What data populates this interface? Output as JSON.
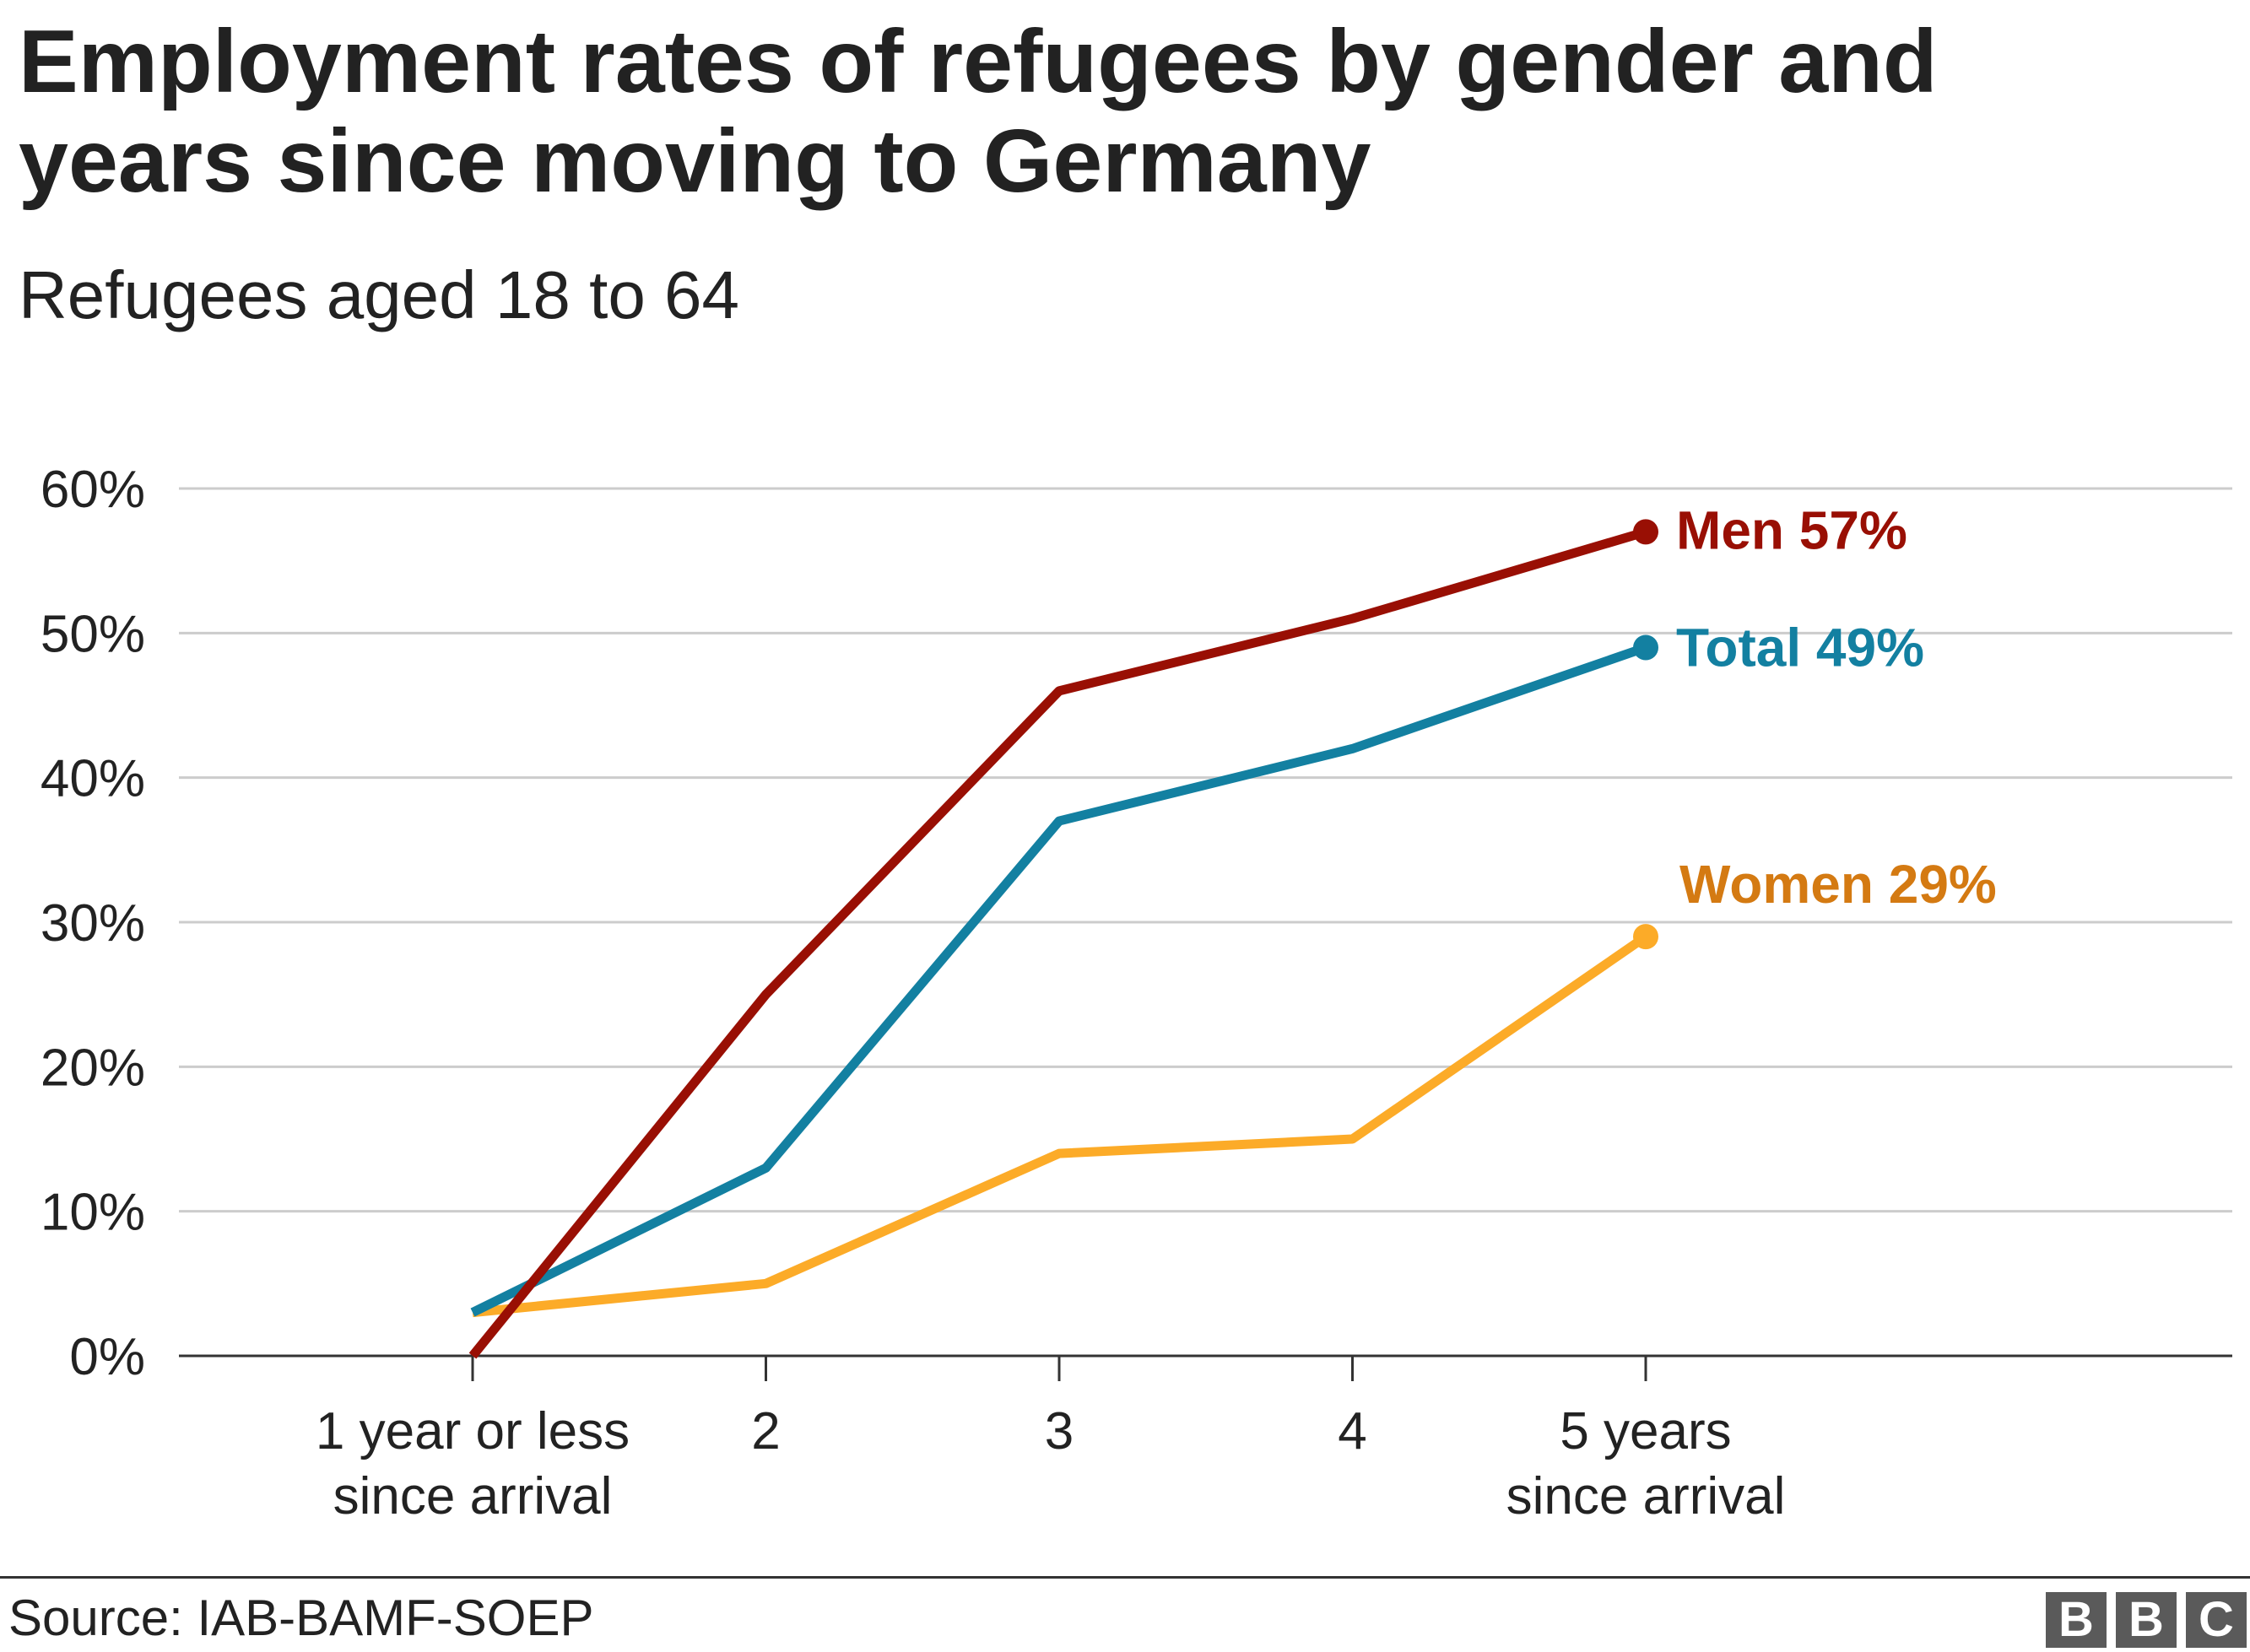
{
  "chart_data": {
    "type": "line",
    "title": "Employment rates of refugees by gender and years since moving to Germany",
    "subtitle": "Refugees aged 18 to 64",
    "categories": [
      [
        "1 year or less",
        "since arrival"
      ],
      [
        "2"
      ],
      [
        "3"
      ],
      [
        "4"
      ],
      [
        "5 years",
        "since arrival"
      ]
    ],
    "ylim": [
      0,
      60
    ],
    "yticks": [
      "0%",
      "10%",
      "20%",
      "30%",
      "40%",
      "50%",
      "60%"
    ],
    "ytick_values": [
      0,
      10,
      20,
      30,
      40,
      50,
      60
    ],
    "grid": true,
    "series": [
      {
        "name": "Men",
        "label": "Men 57%",
        "color": "#990f04",
        "values": [
          0,
          25,
          46,
          51,
          57
        ]
      },
      {
        "name": "Total",
        "label": "Total 49%",
        "color": "#1380a1",
        "values": [
          3,
          13,
          37,
          42,
          49
        ]
      },
      {
        "name": "Women",
        "label": "Women 29%",
        "color": "#fcab28",
        "label_color": "#d47a12",
        "values": [
          3,
          5,
          14,
          15,
          29
        ]
      }
    ]
  },
  "footer": {
    "source": "Source: IAB-BAMF-SOEP",
    "logo_letters": [
      "B",
      "B",
      "C"
    ]
  }
}
